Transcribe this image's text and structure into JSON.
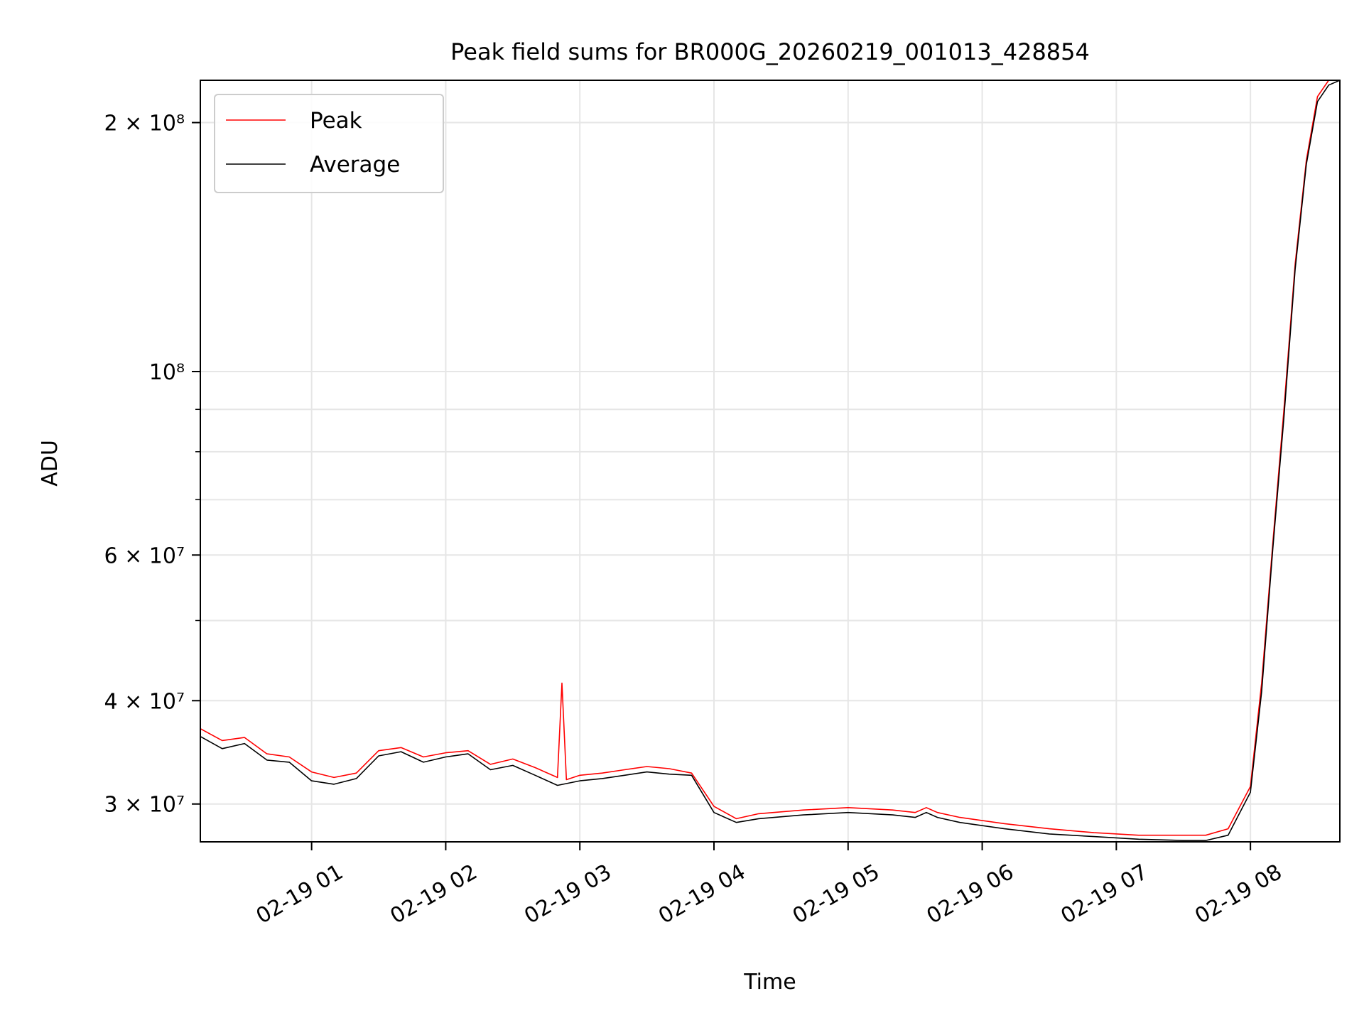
{
  "chart_data": {
    "type": "line",
    "title": "Peak field sums for BR000G_20260219_001013_428854",
    "xlabel": "Time",
    "ylabel": "ADU",
    "x_axis": "datetime",
    "xlim": [
      "2026-02-19T00:10:13",
      "2026-02-19T08:40:00"
    ],
    "y_scale": "log",
    "ylim": [
      27000000,
      225000000
    ],
    "x_ticks": [
      "02-19 01",
      "02-19 02",
      "02-19 03",
      "02-19 04",
      "02-19 05",
      "02-19 06",
      "02-19 07",
      "02-19 08"
    ],
    "x_tick_values": [
      "2026-02-19T01:00:00",
      "2026-02-19T02:00:00",
      "2026-02-19T03:00:00",
      "2026-02-19T04:00:00",
      "2026-02-19T05:00:00",
      "2026-02-19T06:00:00",
      "2026-02-19T07:00:00",
      "2026-02-19T08:00:00"
    ],
    "y_major_ticks": [
      {
        "value": 30000000,
        "label": "3 × 10⁷"
      },
      {
        "value": 40000000,
        "label": "4 × 10⁷"
      },
      {
        "value": 60000000,
        "label": "6 × 10⁷"
      },
      {
        "value": 100000000,
        "label": "10⁸"
      },
      {
        "value": 200000000,
        "label": "2 × 10⁸"
      }
    ],
    "y_minor_gridlines": [
      50000000,
      70000000,
      80000000,
      90000000
    ],
    "grid": true,
    "legend_position": "top-left",
    "series": [
      {
        "name": "Peak",
        "color": "#ff0000",
        "x": [
          "2026-02-19T00:10",
          "2026-02-19T00:20",
          "2026-02-19T00:30",
          "2026-02-19T00:40",
          "2026-02-19T00:50",
          "2026-02-19T01:00",
          "2026-02-19T01:10",
          "2026-02-19T01:20",
          "2026-02-19T01:30",
          "2026-02-19T01:40",
          "2026-02-19T01:50",
          "2026-02-19T02:00",
          "2026-02-19T02:10",
          "2026-02-19T02:20",
          "2026-02-19T02:30",
          "2026-02-19T02:40",
          "2026-02-19T02:50",
          "2026-02-19T02:52",
          "2026-02-19T02:54",
          "2026-02-19T03:00",
          "2026-02-19T03:10",
          "2026-02-19T03:20",
          "2026-02-19T03:30",
          "2026-02-19T03:40",
          "2026-02-19T03:50",
          "2026-02-19T04:00",
          "2026-02-19T04:10",
          "2026-02-19T04:20",
          "2026-02-19T04:40",
          "2026-02-19T05:00",
          "2026-02-19T05:20",
          "2026-02-19T05:30",
          "2026-02-19T05:35",
          "2026-02-19T05:40",
          "2026-02-19T05:50",
          "2026-02-19T06:10",
          "2026-02-19T06:30",
          "2026-02-19T06:50",
          "2026-02-19T07:10",
          "2026-02-19T07:30",
          "2026-02-19T07:40",
          "2026-02-19T07:50",
          "2026-02-19T08:00",
          "2026-02-19T08:05",
          "2026-02-19T08:10",
          "2026-02-19T08:15",
          "2026-02-19T08:20",
          "2026-02-19T08:25",
          "2026-02-19T08:30",
          "2026-02-19T08:35",
          "2026-02-19T08:40"
        ],
        "y": [
          37000000,
          35800000,
          36100000,
          34500000,
          34200000,
          32800000,
          32300000,
          32700000,
          34800000,
          35100000,
          34200000,
          34600000,
          34800000,
          33500000,
          34000000,
          33200000,
          32300000,
          42000000,
          32100000,
          32500000,
          32700000,
          33000000,
          33300000,
          33100000,
          32700000,
          29800000,
          28800000,
          29200000,
          29500000,
          29700000,
          29500000,
          29300000,
          29700000,
          29300000,
          28900000,
          28400000,
          28000000,
          27700000,
          27500000,
          27500000,
          27500000,
          28000000,
          31500000,
          42000000,
          62000000,
          90000000,
          135000000,
          180000000,
          215000000,
          225000000,
          225000000
        ]
      },
      {
        "name": "Average",
        "color": "#000000",
        "x": [
          "2026-02-19T00:10",
          "2026-02-19T00:20",
          "2026-02-19T00:30",
          "2026-02-19T00:40",
          "2026-02-19T00:50",
          "2026-02-19T01:00",
          "2026-02-19T01:10",
          "2026-02-19T01:20",
          "2026-02-19T01:30",
          "2026-02-19T01:40",
          "2026-02-19T01:50",
          "2026-02-19T02:00",
          "2026-02-19T02:10",
          "2026-02-19T02:20",
          "2026-02-19T02:30",
          "2026-02-19T02:40",
          "2026-02-19T02:50",
          "2026-02-19T03:00",
          "2026-02-19T03:10",
          "2026-02-19T03:20",
          "2026-02-19T03:30",
          "2026-02-19T03:40",
          "2026-02-19T03:50",
          "2026-02-19T04:00",
          "2026-02-19T04:10",
          "2026-02-19T04:20",
          "2026-02-19T04:40",
          "2026-02-19T05:00",
          "2026-02-19T05:20",
          "2026-02-19T05:30",
          "2026-02-19T05:35",
          "2026-02-19T05:40",
          "2026-02-19T05:50",
          "2026-02-19T06:10",
          "2026-02-19T06:30",
          "2026-02-19T06:50",
          "2026-02-19T07:10",
          "2026-02-19T07:30",
          "2026-02-19T07:40",
          "2026-02-19T07:50",
          "2026-02-19T08:00",
          "2026-02-19T08:05",
          "2026-02-19T08:10",
          "2026-02-19T08:15",
          "2026-02-19T08:20",
          "2026-02-19T08:25",
          "2026-02-19T08:30",
          "2026-02-19T08:35",
          "2026-02-19T08:40"
        ],
        "y": [
          36200000,
          35000000,
          35500000,
          33900000,
          33700000,
          32000000,
          31700000,
          32200000,
          34300000,
          34700000,
          33700000,
          34200000,
          34500000,
          33000000,
          33400000,
          32500000,
          31600000,
          32000000,
          32200000,
          32500000,
          32800000,
          32600000,
          32500000,
          29300000,
          28500000,
          28800000,
          29100000,
          29300000,
          29100000,
          28900000,
          29300000,
          28900000,
          28500000,
          28000000,
          27600000,
          27400000,
          27200000,
          27100000,
          27100000,
          27500000,
          31000000,
          41000000,
          61000000,
          88000000,
          133000000,
          178000000,
          212000000,
          222000000,
          225000000
        ]
      }
    ]
  }
}
